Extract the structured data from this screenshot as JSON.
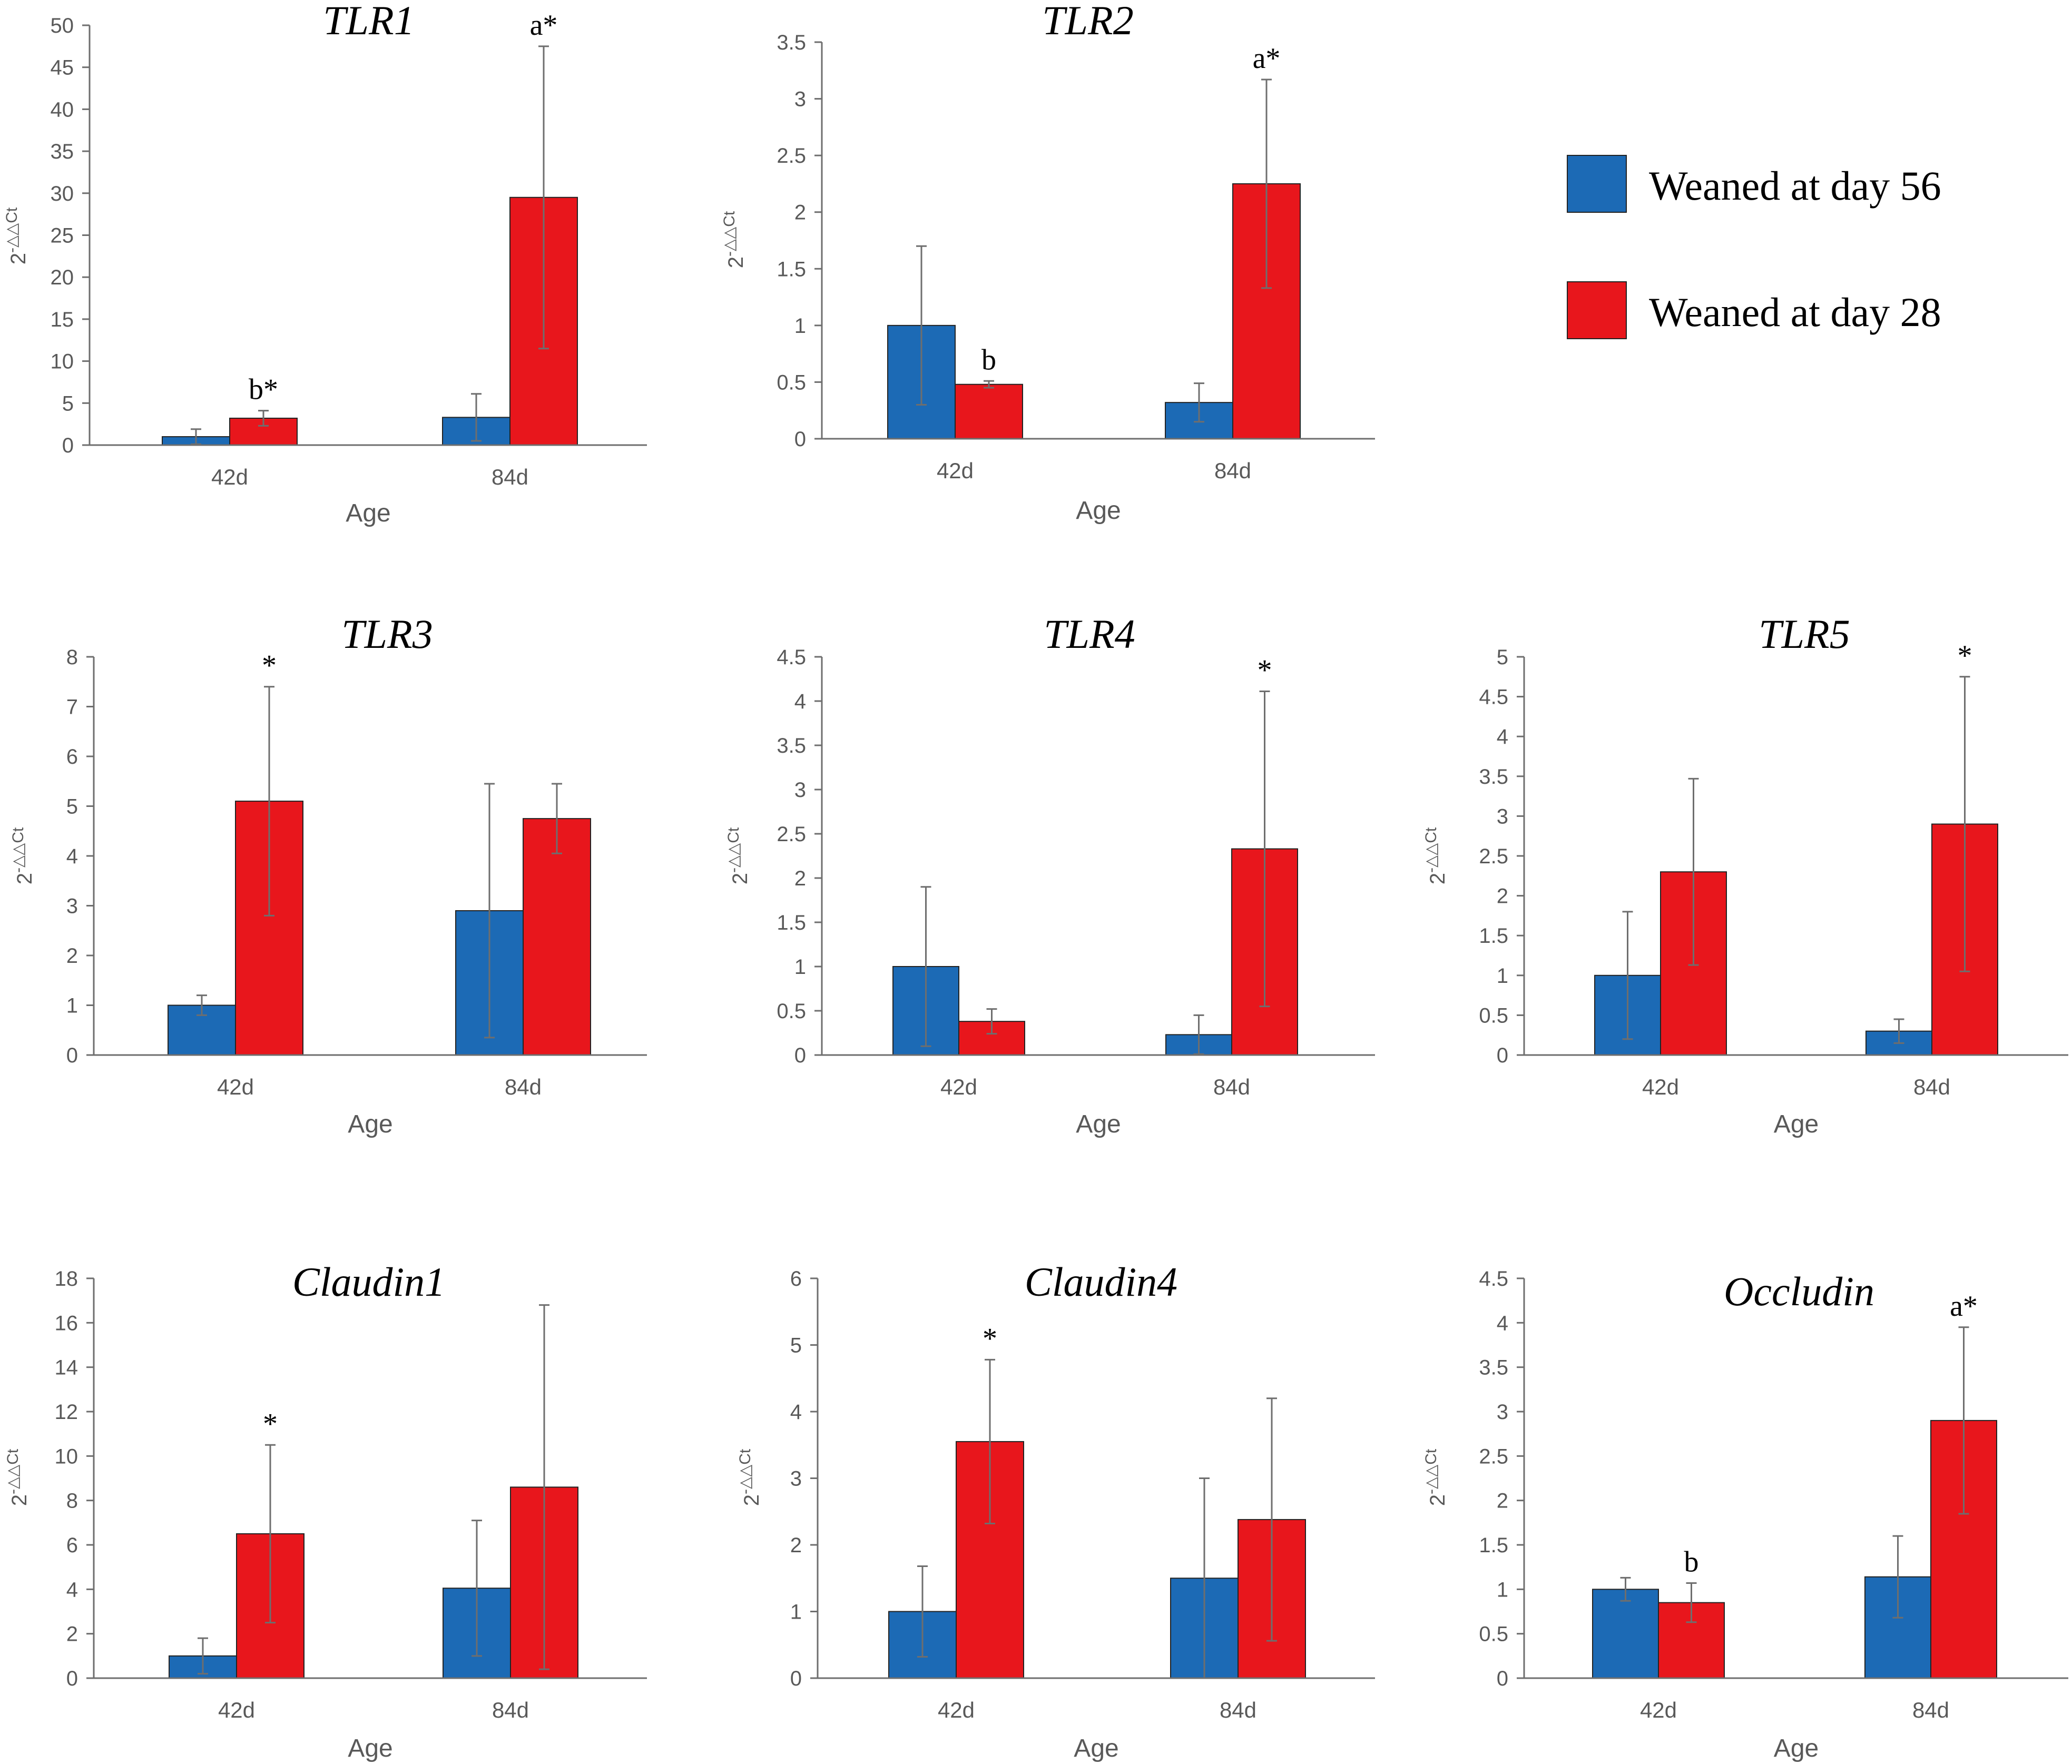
{
  "legend": {
    "entries": [
      {
        "label": "Weaned at day 56",
        "color": "#1c6ab5"
      },
      {
        "label": "Weaned at day 28",
        "color": "#e8161c"
      }
    ]
  },
  "chart_data": [
    {
      "type": "bar",
      "title": "TLR1",
      "xlabel": "Age",
      "ylabel": "2-△△Ct",
      "categories": [
        "42d",
        "84d"
      ],
      "ylim": [
        0,
        50
      ],
      "yticks": [
        "0",
        "5",
        "10",
        "15",
        "20",
        "25",
        "30",
        "35",
        "40",
        "45",
        "50"
      ],
      "series": [
        {
          "name": "Weaned at day 56",
          "values": [
            1.0,
            3.3
          ],
          "errors": [
            0.9,
            2.8
          ],
          "labels": [
            "",
            ""
          ]
        },
        {
          "name": "Weaned at day 28",
          "values": [
            3.2,
            29.5
          ],
          "errors": [
            0.9,
            18.0
          ],
          "labels": [
            "b*",
            "a*"
          ]
        }
      ]
    },
    {
      "type": "bar",
      "title": "TLR2",
      "xlabel": "Age",
      "ylabel": "2-△△Ct",
      "categories": [
        "42d",
        "84d"
      ],
      "ylim": [
        0,
        3.5
      ],
      "yticks": [
        "0",
        "0.5",
        "1",
        "1.5",
        "2",
        "2.5",
        "3",
        "3.5"
      ],
      "series": [
        {
          "name": "Weaned at day 56",
          "values": [
            1.0,
            0.32
          ],
          "errors": [
            0.7,
            0.17
          ],
          "labels": [
            "",
            ""
          ]
        },
        {
          "name": "Weaned at day 28",
          "values": [
            0.48,
            2.25
          ],
          "errors": [
            0.03,
            0.92
          ],
          "labels": [
            "b",
            "a*"
          ]
        }
      ]
    },
    {
      "type": "bar",
      "title": "TLR3",
      "xlabel": "Age",
      "ylabel": "2-△△Ct",
      "categories": [
        "42d",
        "84d"
      ],
      "ylim": [
        0,
        8
      ],
      "yticks": [
        "0",
        "1",
        "2",
        "3",
        "4",
        "5",
        "6",
        "7",
        "8"
      ],
      "series": [
        {
          "name": "Weaned at day 56",
          "values": [
            1.0,
            2.9
          ],
          "errors": [
            0.2,
            2.55
          ],
          "labels": [
            "",
            ""
          ]
        },
        {
          "name": "Weaned at day 28",
          "values": [
            5.1,
            4.75
          ],
          "errors": [
            2.3,
            0.7
          ],
          "labels": [
            "*",
            ""
          ]
        }
      ]
    },
    {
      "type": "bar",
      "title": "TLR4",
      "xlabel": "Age",
      "ylabel": "2-△△Ct",
      "categories": [
        "42d",
        "84d"
      ],
      "ylim": [
        0,
        4.5
      ],
      "yticks": [
        "0",
        "0.5",
        "1",
        "1.5",
        "2",
        "2.5",
        "3",
        "3.5",
        "4",
        "4.5"
      ],
      "series": [
        {
          "name": "Weaned at day 56",
          "values": [
            1.0,
            0.23
          ],
          "errors": [
            0.9,
            0.22
          ],
          "labels": [
            "",
            ""
          ]
        },
        {
          "name": "Weaned at day 28",
          "values": [
            0.38,
            2.33
          ],
          "errors": [
            0.14,
            1.78
          ],
          "labels": [
            "",
            "*"
          ]
        }
      ]
    },
    {
      "type": "bar",
      "title": "TLR5",
      "xlabel": "Age",
      "ylabel": "2-△△Ct",
      "categories": [
        "42d",
        "84d"
      ],
      "ylim": [
        0,
        5
      ],
      "yticks": [
        "0",
        "0.5",
        "1",
        "1.5",
        "2",
        "2.5",
        "3",
        "3.5",
        "4",
        "4.5",
        "5"
      ],
      "series": [
        {
          "name": "Weaned at day 56",
          "values": [
            1.0,
            0.3
          ],
          "errors": [
            0.8,
            0.15
          ],
          "labels": [
            "",
            ""
          ]
        },
        {
          "name": "Weaned at day 28",
          "values": [
            2.3,
            2.9
          ],
          "errors": [
            1.17,
            1.85
          ],
          "labels": [
            "",
            "*"
          ]
        }
      ]
    },
    {
      "type": "bar",
      "title": "Claudin1",
      "xlabel": "Age",
      "ylabel": "2-△△Ct",
      "categories": [
        "42d",
        "84d"
      ],
      "ylim": [
        0,
        18
      ],
      "yticks": [
        "0",
        "2",
        "4",
        "6",
        "8",
        "10",
        "12",
        "14",
        "16",
        "18"
      ],
      "series": [
        {
          "name": "Weaned at day 56",
          "values": [
            1.0,
            4.05
          ],
          "errors": [
            0.8,
            3.05
          ],
          "labels": [
            "",
            ""
          ]
        },
        {
          "name": "Weaned at day 28",
          "values": [
            6.5,
            8.6
          ],
          "errors": [
            4.0,
            8.2
          ],
          "labels": [
            "*",
            ""
          ]
        }
      ]
    },
    {
      "type": "bar",
      "title": "Claudin4",
      "xlabel": "Age",
      "ylabel": "2-△△Ct",
      "categories": [
        "42d",
        "84d"
      ],
      "ylim": [
        0,
        6
      ],
      "yticks": [
        "0",
        "1",
        "2",
        "3",
        "4",
        "5",
        "6"
      ],
      "series": [
        {
          "name": "Weaned at day 56",
          "values": [
            1.0,
            1.5
          ],
          "errors": [
            0.68,
            1.5
          ],
          "labels": [
            "",
            ""
          ]
        },
        {
          "name": "Weaned at day 28",
          "values": [
            3.55,
            2.38
          ],
          "errors": [
            1.23,
            1.82
          ],
          "labels": [
            "*",
            ""
          ]
        }
      ]
    },
    {
      "type": "bar",
      "title": "Occludin",
      "xlabel": "Age",
      "ylabel": "2-△△Ct",
      "categories": [
        "42d",
        "84d"
      ],
      "ylim": [
        0,
        4.5
      ],
      "yticks": [
        "0",
        "0.5",
        "1",
        "1.5",
        "2",
        "2.5",
        "3",
        "3.5",
        "4",
        "4.5"
      ],
      "series": [
        {
          "name": "Weaned at day 56",
          "values": [
            1.0,
            1.14
          ],
          "errors": [
            0.13,
            0.46
          ],
          "labels": [
            "",
            ""
          ]
        },
        {
          "name": "Weaned at day 28",
          "values": [
            0.85,
            2.9
          ],
          "errors": [
            0.22,
            1.05
          ],
          "labels": [
            "b",
            "a*"
          ]
        }
      ]
    }
  ]
}
